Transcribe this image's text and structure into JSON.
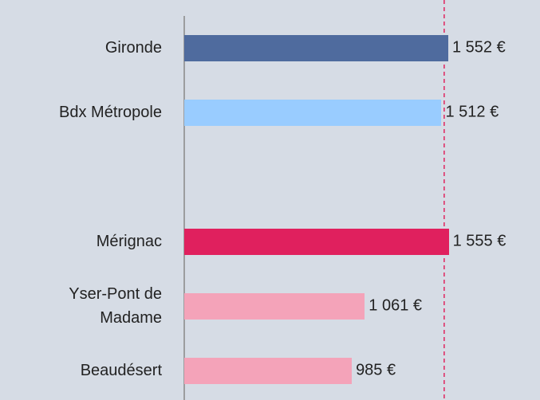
{
  "chart_data": {
    "type": "bar",
    "orientation": "horizontal",
    "categories": [
      "Gironde",
      "Bdx Métropole",
      null,
      "Mérignac",
      "Yser-Pont de Madame",
      "Beaudésert"
    ],
    "values": [
      1552,
      1512,
      null,
      1555,
      1061,
      985
    ],
    "value_labels": [
      "1 552 €",
      "1 512 €",
      null,
      "1 555 €",
      "1 061 €",
      "985 €"
    ],
    "colors": [
      "#4f6b9e",
      "#99ccff",
      null,
      "#e0205e",
      "#f4a3b9",
      "#f4a3b9"
    ],
    "xlim": [
      0,
      2000
    ],
    "reference_line": {
      "value": 1528,
      "color": "#e0245e"
    }
  }
}
